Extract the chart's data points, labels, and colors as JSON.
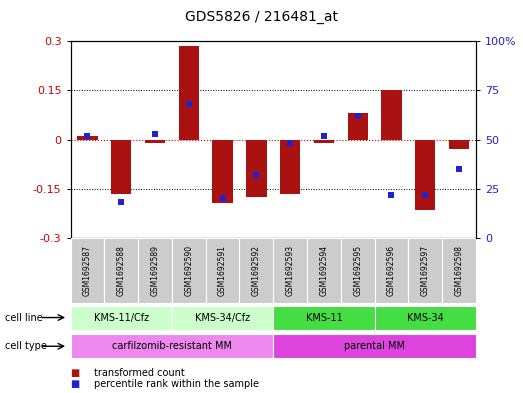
{
  "title": "GDS5826 / 216481_at",
  "samples": [
    "GSM1692587",
    "GSM1692588",
    "GSM1692589",
    "GSM1692590",
    "GSM1692591",
    "GSM1692592",
    "GSM1692593",
    "GSM1692594",
    "GSM1692595",
    "GSM1692596",
    "GSM1692597",
    "GSM1692598"
  ],
  "transformed_counts": [
    0.01,
    -0.165,
    -0.01,
    0.285,
    -0.195,
    -0.175,
    -0.165,
    -0.01,
    0.08,
    0.15,
    -0.215,
    -0.03
  ],
  "percentile_ranks": [
    52,
    18,
    53,
    68,
    20,
    32,
    48,
    52,
    62,
    22,
    22,
    35
  ],
  "ylim_left": [
    -0.3,
    0.3
  ],
  "ylim_right": [
    0,
    100
  ],
  "yticks_left": [
    -0.3,
    -0.15,
    0,
    0.15,
    0.3
  ],
  "yticks_right": [
    0,
    25,
    50,
    75,
    100
  ],
  "ytick_labels_left": [
    "-0.3",
    "-0.15",
    "0",
    "0.15",
    "0.3"
  ],
  "ytick_labels_right": [
    "0",
    "25",
    "50",
    "75",
    "100%"
  ],
  "bar_color": "#aa1111",
  "dot_color": "#2222cc",
  "zero_line_color": "#cc0000",
  "sample_bg_color": "#cccccc",
  "cell_line_groups": [
    {
      "label": "KMS-11/Cfz",
      "start": 0,
      "end": 2,
      "color": "#ccffcc"
    },
    {
      "label": "KMS-34/Cfz",
      "start": 3,
      "end": 5,
      "color": "#ccffcc"
    },
    {
      "label": "KMS-11",
      "start": 6,
      "end": 8,
      "color": "#44dd44"
    },
    {
      "label": "KMS-34",
      "start": 9,
      "end": 11,
      "color": "#44dd44"
    }
  ],
  "cell_type_groups": [
    {
      "label": "carfilzomib-resistant MM",
      "start": 0,
      "end": 5,
      "color": "#ee88ee"
    },
    {
      "label": "parental MM",
      "start": 6,
      "end": 11,
      "color": "#dd44dd"
    }
  ],
  "legend_items": [
    {
      "label": "transformed count",
      "color": "#aa1111"
    },
    {
      "label": "percentile rank within the sample",
      "color": "#2222cc"
    }
  ]
}
